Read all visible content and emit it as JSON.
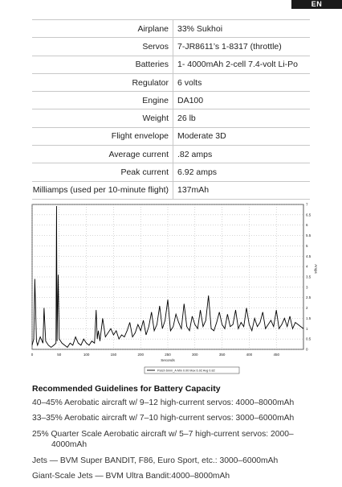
{
  "lang_tab": "EN",
  "specs": [
    {
      "label": "Airplane",
      "value": "33% Sukhoi"
    },
    {
      "label": "Servos",
      "value": "7-JR8611’s 1-8317 (throttle)"
    },
    {
      "label": "Batteries",
      "value": "1- 4000mAh 2-cell 7.4-volt Li-Po"
    },
    {
      "label": "Regulator",
      "value": "6 volts"
    },
    {
      "label": "Engine",
      "value": "DA100"
    },
    {
      "label": "Weight",
      "value": "26 lb"
    },
    {
      "label": "Flight envelope",
      "value": "Moderate 3D"
    },
    {
      "label": "Average current",
      "value": ".82 amps"
    },
    {
      "label": "Peak current",
      "value": "6.92 amps"
    },
    {
      "label": "Milliamps (used per 10-minute flight)",
      "value": "137mAh"
    }
  ],
  "chart_data": {
    "type": "line",
    "xlabel": "Seconds",
    "ylabel": "Amps",
    "xlim": [
      0,
      500
    ],
    "ylim": [
      0,
      7
    ],
    "x_ticks": [
      0,
      50,
      100,
      150,
      200,
      250,
      300,
      350,
      400,
      450
    ],
    "y_ticks": [
      0,
      0.5,
      1,
      1.5,
      2,
      2.5,
      3,
      3.5,
      4,
      4.5,
      5,
      5.5,
      6,
      6.5,
      7
    ],
    "grid": true,
    "legend_position": "bottom-center",
    "legend_text": "Patch 6mm_A  Min 0.00 Max 6.92 Avg 0.82",
    "series": [
      {
        "x": [
          0,
          3,
          5,
          8,
          10,
          15,
          20,
          22,
          25,
          30,
          35,
          40,
          44,
          45,
          46,
          48,
          50,
          55,
          60,
          65,
          70,
          75,
          80,
          85,
          90,
          95,
          100,
          105,
          110,
          115,
          118,
          120,
          122,
          125,
          130,
          135,
          140,
          145,
          150,
          155,
          160,
          165,
          170,
          175,
          180,
          185,
          190,
          195,
          200,
          205,
          210,
          215,
          220,
          225,
          230,
          235,
          240,
          245,
          250,
          255,
          260,
          265,
          270,
          275,
          280,
          285,
          290,
          295,
          300,
          305,
          310,
          315,
          320,
          325,
          330,
          335,
          340,
          345,
          350,
          355,
          360,
          365,
          370,
          375,
          380,
          385,
          390,
          395,
          400,
          405,
          410,
          415,
          420,
          425,
          430,
          435,
          440,
          445,
          450,
          455,
          460,
          465,
          470,
          475,
          480,
          485,
          490,
          495,
          500
        ],
        "y": [
          0.2,
          0.5,
          3.4,
          0.4,
          0.2,
          0.6,
          0.3,
          2.0,
          0.4,
          0.2,
          0.1,
          0.2,
          0.3,
          6.92,
          0.4,
          3.6,
          0.5,
          0.3,
          0.2,
          0.1,
          0.3,
          0.2,
          0.6,
          0.3,
          0.2,
          0.5,
          0.3,
          0.2,
          0.4,
          0.3,
          1.9,
          0.5,
          0.9,
          0.4,
          1.5,
          0.6,
          0.8,
          1.0,
          0.7,
          0.9,
          0.5,
          0.7,
          0.6,
          0.9,
          1.3,
          0.6,
          0.8,
          1.2,
          0.9,
          1.4,
          0.7,
          1.1,
          1.8,
          0.9,
          1.2,
          2.1,
          1.0,
          1.4,
          2.4,
          0.9,
          1.1,
          1.7,
          1.3,
          1.0,
          2.2,
          1.1,
          0.9,
          1.6,
          1.2,
          1.0,
          1.9,
          1.1,
          1.4,
          2.6,
          1.0,
          0.9,
          1.3,
          1.8,
          1.2,
          1.0,
          1.7,
          1.1,
          1.2,
          1.9,
          1.0,
          1.3,
          1.1,
          2.0,
          1.2,
          0.9,
          1.5,
          1.1,
          1.3,
          1.8,
          1.0,
          1.2,
          1.4,
          1.1,
          1.9,
          1.0,
          1.2,
          1.5,
          1.1,
          1.6,
          1.0,
          1.3,
          1.2,
          1.1,
          1.0
        ]
      }
    ]
  },
  "guidelines": {
    "title": "Recommended Guidelines for Battery Capacity",
    "lines": [
      {
        "text": "40–45% Aerobatic aircraft w/ 9–12 high-current servos: 4000–8000mAh",
        "cont": ""
      },
      {
        "text": "33–35% Aerobatic aircraft w/ 7–10 high-current servos: 3000–6000mAh",
        "cont": ""
      },
      {
        "text": "25% Quarter Scale Aerobatic aircraft w/ 5–7 high-current servos: 2000–",
        "cont": "4000mAh"
      },
      {
        "text": "Jets — BVM Super BANDIT, F86, Euro Sport, etc.: 3000–6000mAh",
        "cont": ""
      },
      {
        "text": "Giant-Scale Jets — BVM Ultra Bandit:4000–8000mAh",
        "cont": ""
      }
    ]
  }
}
